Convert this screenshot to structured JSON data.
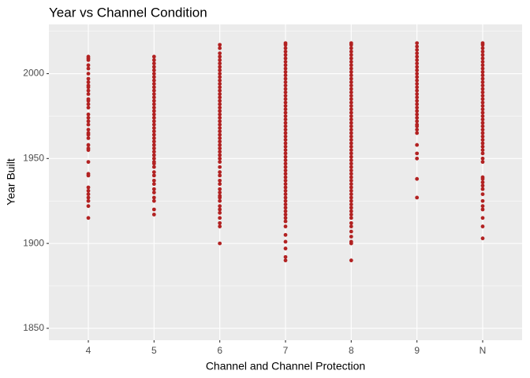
{
  "chart_data": {
    "type": "strip",
    "title": "Year vs Channel Condition",
    "x_label": "Channel and Channel Protection",
    "y_label": "Year Built",
    "categories": [
      "4",
      "5",
      "6",
      "7",
      "8",
      "9",
      "N"
    ],
    "color": "#b22222",
    "ylim": [
      1843,
      2029
    ],
    "yticks": [
      1850,
      1900,
      1950,
      2000
    ],
    "grid": true,
    "values": [
      [
        1915,
        1922,
        1925,
        1927,
        1929,
        1931,
        1933,
        1940,
        1941,
        1948,
        1955,
        1956,
        1958,
        1962,
        1964,
        1965,
        1967,
        1970,
        1972,
        1974,
        1976,
        1980,
        1982,
        1984,
        1985,
        1988,
        1990,
        1992,
        1993,
        1995,
        1997,
        2000,
        2003,
        2005,
        2008,
        2009,
        2010
      ],
      [
        1917,
        1920,
        1925,
        1927,
        1930,
        1932,
        1935,
        1937,
        1940,
        1942,
        1945,
        1947,
        1948,
        1950,
        1952,
        1954,
        1956,
        1958,
        1960,
        1962,
        1964,
        1966,
        1968,
        1970,
        1972,
        1974,
        1976,
        1978,
        1980,
        1982,
        1984,
        1986,
        1988,
        1990,
        1992,
        1994,
        1996,
        1998,
        2000,
        2002,
        2004,
        2006,
        2008,
        2010
      ],
      [
        1900,
        1910,
        1912,
        1915,
        1918,
        1920,
        1922,
        1925,
        1927,
        1928,
        1930,
        1932,
        1935,
        1937,
        1940,
        1942,
        1945,
        1948,
        1950,
        1952,
        1954,
        1956,
        1958,
        1960,
        1962,
        1964,
        1966,
        1968,
        1970,
        1972,
        1974,
        1976,
        1978,
        1980,
        1982,
        1984,
        1986,
        1988,
        1990,
        1992,
        1994,
        1996,
        1998,
        2000,
        2002,
        2004,
        2006,
        2008,
        2010,
        2012,
        2015,
        2017
      ],
      [
        1890,
        1892,
        1897,
        1901,
        1905,
        1910,
        1913,
        1915,
        1917,
        1919,
        1921,
        1923,
        1925,
        1927,
        1929,
        1931,
        1933,
        1935,
        1937,
        1939,
        1941,
        1943,
        1945,
        1947,
        1949,
        1951,
        1953,
        1955,
        1957,
        1959,
        1961,
        1963,
        1965,
        1967,
        1969,
        1971,
        1973,
        1975,
        1977,
        1979,
        1981,
        1983,
        1985,
        1987,
        1989,
        1991,
        1993,
        1995,
        1997,
        1999,
        2001,
        2003,
        2005,
        2007,
        2009,
        2011,
        2013,
        2015,
        2017,
        2018
      ],
      [
        1890,
        1900,
        1901,
        1904,
        1907,
        1910,
        1912,
        1915,
        1917,
        1919,
        1921,
        1923,
        1925,
        1927,
        1929,
        1931,
        1933,
        1935,
        1937,
        1939,
        1941,
        1943,
        1945,
        1947,
        1949,
        1951,
        1953,
        1955,
        1957,
        1959,
        1961,
        1963,
        1965,
        1967,
        1969,
        1971,
        1973,
        1975,
        1977,
        1979,
        1981,
        1983,
        1985,
        1987,
        1989,
        1991,
        1993,
        1995,
        1997,
        1999,
        2001,
        2003,
        2005,
        2007,
        2009,
        2011,
        2013,
        2015,
        2017,
        2018
      ],
      [
        1927,
        1938,
        1950,
        1953,
        1958,
        1965,
        1967,
        1969,
        1970,
        1972,
        1974,
        1976,
        1978,
        1980,
        1982,
        1984,
        1986,
        1988,
        1990,
        1992,
        1994,
        1996,
        1998,
        2000,
        2002,
        2004,
        2006,
        2008,
        2010,
        2012,
        2014,
        2016,
        2018
      ],
      [
        1903,
        1910,
        1915,
        1920,
        1922,
        1925,
        1929,
        1932,
        1934,
        1936,
        1938,
        1939,
        1948,
        1950,
        1953,
        1955,
        1957,
        1959,
        1961,
        1963,
        1965,
        1967,
        1969,
        1971,
        1973,
        1975,
        1977,
        1979,
        1981,
        1983,
        1985,
        1987,
        1989,
        1991,
        1993,
        1995,
        1997,
        1999,
        2001,
        2003,
        2005,
        2007,
        2009,
        2011,
        2013,
        2015,
        2017,
        2018
      ]
    ]
  }
}
